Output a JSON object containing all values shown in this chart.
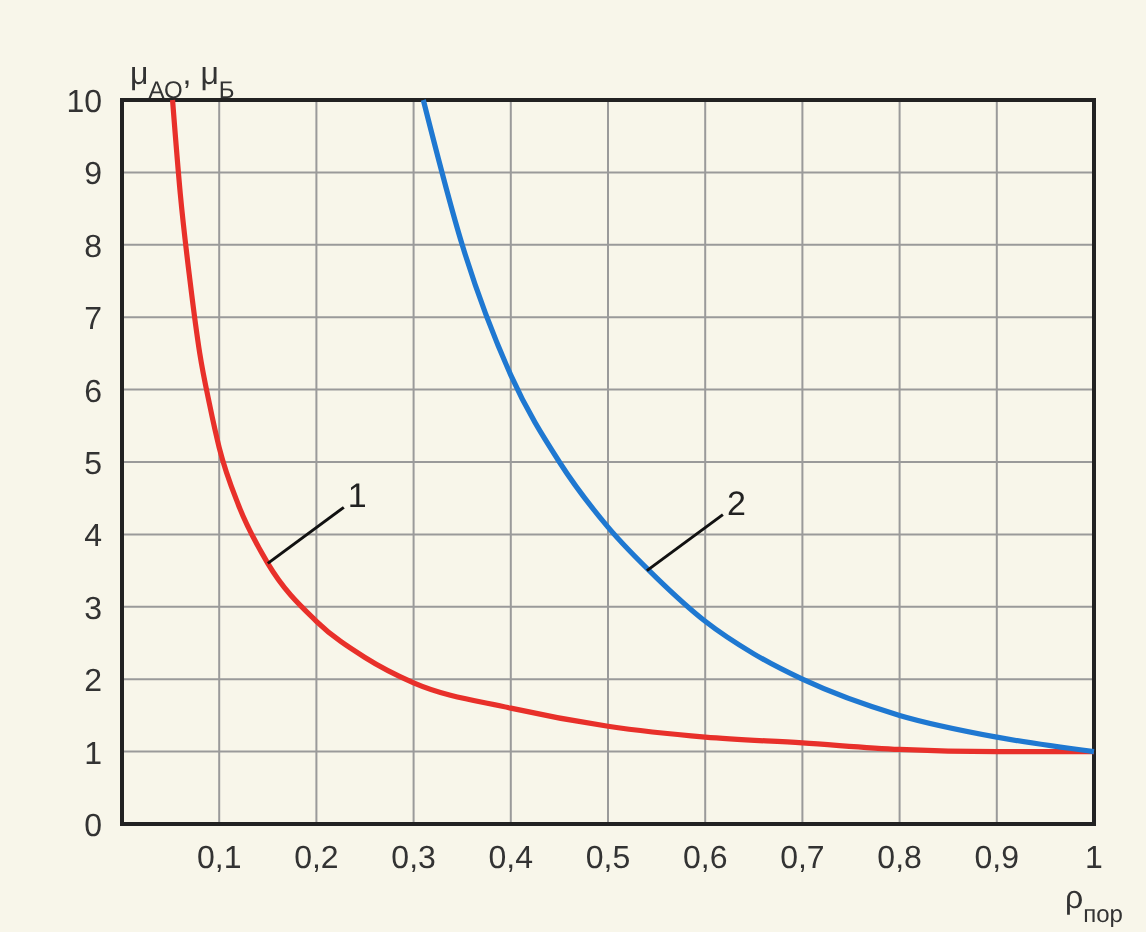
{
  "chart_data": {
    "type": "line",
    "xlabel": "ρ$_{пор}$",
    "ylabel": "μ$_{АО}$, μ$_{Б}$",
    "xlim": [
      0,
      1
    ],
    "ylim": [
      0,
      10
    ],
    "xticks": [
      {
        "value": 0,
        "label": null
      },
      {
        "value": 0.1,
        "label": "0,1"
      },
      {
        "value": 0.2,
        "label": "0,2"
      },
      {
        "value": 0.3,
        "label": "0,3"
      },
      {
        "value": 0.4,
        "label": "0,4"
      },
      {
        "value": 0.5,
        "label": "0,5"
      },
      {
        "value": 0.6,
        "label": "0,6"
      },
      {
        "value": 0.7,
        "label": "0,7"
      },
      {
        "value": 0.8,
        "label": "0,8"
      },
      {
        "value": 0.9,
        "label": "0,9"
      },
      1
    ],
    "yticks": [
      0,
      1,
      2,
      3,
      4,
      5,
      6,
      7,
      8,
      9,
      10
    ],
    "grid": true,
    "marker": "none",
    "line_style": "solid",
    "series": [
      {
        "color": "#e8302a",
        "x": [
          0.052,
          0.06,
          0.07,
          0.08,
          0.09,
          0.1,
          0.12,
          0.15,
          0.2,
          0.25,
          0.3,
          0.4,
          0.5,
          0.6,
          0.7,
          0.8,
          0.9,
          1
        ],
        "values": [
          10,
          8.7,
          7.5,
          6.5,
          5.8,
          5.2,
          4.4,
          3.6,
          2.8,
          2.3,
          1.95,
          1.6,
          1.35,
          1.2,
          1.12,
          1.03,
          1,
          1
        ]
      },
      {
        "color": "#1f78d1",
        "x": [
          0.31,
          0.35,
          0.4,
          0.45,
          0.5,
          0.55,
          0.6,
          0.65,
          0.7,
          0.8,
          0.9,
          1
        ],
        "values": [
          10,
          8,
          6.2,
          5,
          4.1,
          3.4,
          2.8,
          2.35,
          2,
          1.5,
          1.2,
          1
        ]
      }
    ],
    "annotations": [
      {
        "text": "1",
        "x": 0.15,
        "y": 3.6
      },
      {
        "text": "2",
        "x": 0.54,
        "y": 3.5
      }
    ]
  }
}
